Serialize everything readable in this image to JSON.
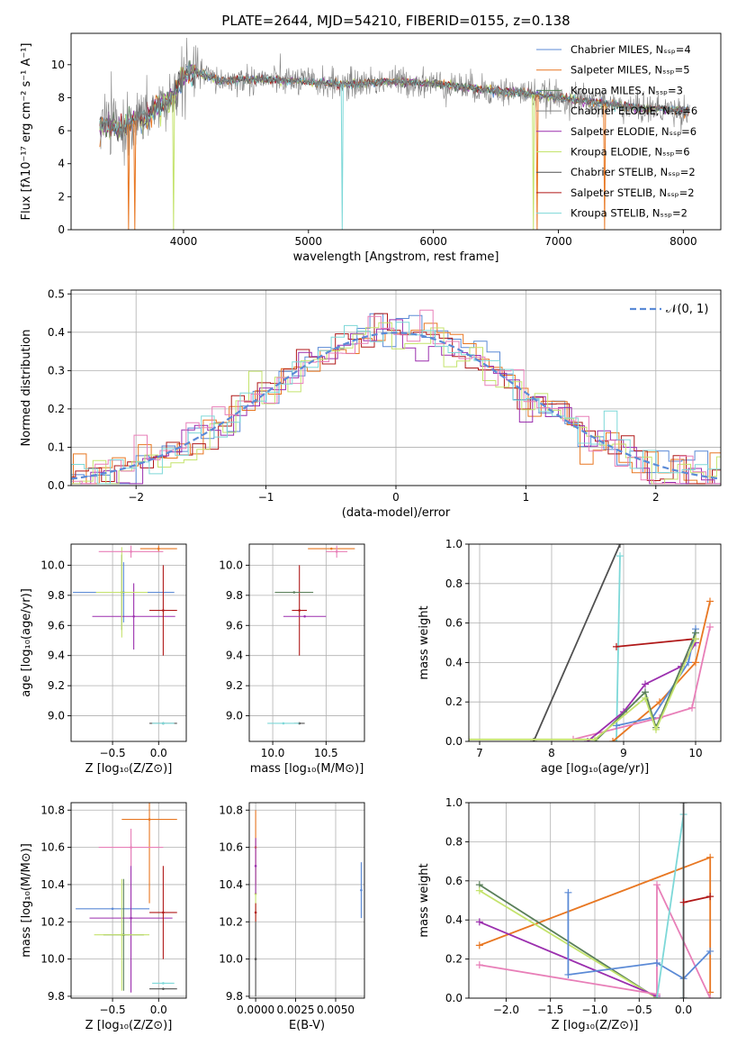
{
  "title": "PLATE=2644, MJD=54210, FIBERID=0155, z=0.138",
  "colors": {
    "Chabrier MILES": "#5b8ad6",
    "Salpeter MILES": "#e87722",
    "Kroupa MILES": "#5a7f5a",
    "Chabrier ELODIE": "#808080",
    "Salpeter ELODIE": "#9b2fae",
    "Kroupa ELODIE": "#c4e36c",
    "Chabrier STELIB": "#505050",
    "Salpeter STELIB": "#b01818",
    "Kroupa STELIB": "#7dd8d8",
    "pink": "#e87fb8",
    "normal_curve": "#5b8ad6"
  },
  "chart_data": [
    {
      "id": "spectrum",
      "type": "line",
      "xlabel": "wavelength [Angstrom, rest frame]",
      "ylabel": "Flux [fλ10⁻¹⁷ erg cm⁻² s⁻¹ A⁻¹]",
      "xlim": [
        3100,
        8300
      ],
      "ylim": [
        0,
        11.9
      ],
      "xticks": [
        4000,
        5000,
        6000,
        7000,
        8000
      ],
      "yticks": [
        0,
        2,
        4,
        6,
        8,
        10
      ],
      "grid": false,
      "legend_position": "right",
      "legend": [
        {
          "label": "Chabrier MILES, Nₛₛₚ=4",
          "color_key": "Chabrier MILES"
        },
        {
          "label": "Salpeter MILES, Nₛₛₚ=5",
          "color_key": "Salpeter MILES"
        },
        {
          "label": "Kroupa MILES, Nₛₛₚ=3",
          "color_key": "Kroupa MILES"
        },
        {
          "label": "Chabrier ELODIE, Nₛₛₚ=6",
          "color_key": "Chabrier ELODIE"
        },
        {
          "label": "Salpeter ELODIE, Nₛₛₚ=6",
          "color_key": "Salpeter ELODIE"
        },
        {
          "label": "Kroupa ELODIE, Nₛₛₚ=6",
          "color_key": "Kroupa ELODIE"
        },
        {
          "label": "Chabrier STELIB, Nₛₛₚ=2",
          "color_key": "Chabrier STELIB"
        },
        {
          "label": "Salpeter STELIB, Nₛₛₚ=2",
          "color_key": "Salpeter STELIB"
        },
        {
          "label": "Kroupa STELIB, Nₛₛₚ=2",
          "color_key": "Kroupa STELIB"
        }
      ],
      "continuum": [
        [
          3330,
          6.2
        ],
        [
          3400,
          6.5
        ],
        [
          3500,
          6.0
        ],
        [
          3600,
          6.6
        ],
        [
          3700,
          6.8
        ],
        [
          3800,
          7.5
        ],
        [
          3900,
          7.9
        ],
        [
          3950,
          8.5
        ],
        [
          4000,
          9.3
        ],
        [
          4100,
          9.6
        ],
        [
          4200,
          9.3
        ],
        [
          4300,
          9.0
        ],
        [
          4500,
          9.1
        ],
        [
          4700,
          9.1
        ],
        [
          4900,
          9.0
        ],
        [
          5100,
          8.9
        ],
        [
          5300,
          8.8
        ],
        [
          5500,
          8.9
        ],
        [
          5700,
          9.0
        ],
        [
          5900,
          8.9
        ],
        [
          6100,
          8.8
        ],
        [
          6300,
          8.6
        ],
        [
          6500,
          8.4
        ],
        [
          6700,
          8.3
        ],
        [
          6900,
          8.1
        ],
        [
          7100,
          7.9
        ],
        [
          7300,
          7.7
        ],
        [
          7500,
          7.5
        ],
        [
          7700,
          7.3
        ],
        [
          7900,
          7.3
        ],
        [
          8050,
          7.2
        ]
      ],
      "absorption_dips": [
        {
          "x": 3560,
          "min": 0,
          "color_key": "Salpeter MILES"
        },
        {
          "x": 3610,
          "min": 0,
          "color_key": "Salpeter MILES"
        },
        {
          "x": 3920,
          "min": 0,
          "color_key": "Kroupa ELODIE"
        },
        {
          "x": 5270,
          "min": 0,
          "color_key": "Kroupa STELIB"
        },
        {
          "x": 6800,
          "min": 0,
          "color_key": "Kroupa ELODIE"
        },
        {
          "x": 6830,
          "min": 0,
          "color_key": "Salpeter MILES"
        },
        {
          "x": 7370,
          "min": 0,
          "color_key": "Salpeter MILES"
        }
      ]
    },
    {
      "id": "residuals",
      "type": "line",
      "xlabel": "(data-model)/error",
      "ylabel": "Normed distribution",
      "xlim": [
        -2.5,
        2.5
      ],
      "ylim": [
        0,
        0.51
      ],
      "xticks": [
        -2,
        -1,
        0,
        1,
        2
      ],
      "yticks": [
        0.0,
        0.1,
        0.2,
        0.3,
        0.4,
        0.5
      ],
      "grid": true,
      "legend_position": "top-right",
      "legend": [
        {
          "label": "𝒩(0, 1)",
          "color_key": "normal_curve"
        }
      ],
      "bin_width": 0.1,
      "hist_color_keys": [
        "Chabrier MILES",
        "Salpeter MILES",
        "Salpeter STELIB",
        "Salpeter ELODIE",
        "Kroupa ELODIE",
        "pink",
        "Kroupa STELIB"
      ]
    },
    {
      "id": "age-vs-Z",
      "type": "scatter",
      "xlabel": "Z [log₁₀(Z/Z⊙)]",
      "ylabel": "age  [log₁₀(age/yr)]",
      "xlim": [
        -0.95,
        0.3
      ],
      "ylim": [
        8.83,
        10.14
      ],
      "xticks": [
        -0.5,
        0.0
      ],
      "yticks": [
        9.0,
        9.2,
        9.4,
        9.6,
        9.8,
        10.0
      ],
      "grid": true,
      "points": [
        {
          "x": -0.38,
          "y": 9.82,
          "xerr": 0.55,
          "yerr": 0.2,
          "color_key": "Chabrier MILES"
        },
        {
          "x": 0.0,
          "y": 10.11,
          "xerr": 0.2,
          "yerr": 0.02,
          "color_key": "Salpeter MILES"
        },
        {
          "x": -0.4,
          "y": 9.82,
          "xerr": 0.25,
          "yerr": 0.25,
          "color_key": "Kroupa MILES"
        },
        {
          "x": -0.27,
          "y": 9.66,
          "xerr": 0.45,
          "yerr": 0.22,
          "color_key": "Salpeter ELODIE"
        },
        {
          "x": -0.4,
          "y": 9.82,
          "xerr": 0.28,
          "yerr": 0.3,
          "color_key": "Kroupa ELODIE"
        },
        {
          "x": 0.05,
          "y": 8.95,
          "xerr": 0.15,
          "yerr": 0.0,
          "color_key": "Chabrier STELIB"
        },
        {
          "x": 0.05,
          "y": 9.7,
          "xerr": 0.15,
          "yerr": 0.3,
          "color_key": "Salpeter STELIB"
        },
        {
          "x": 0.05,
          "y": 8.95,
          "xerr": 0.12,
          "yerr": 0.0,
          "color_key": "Kroupa STELIB"
        },
        {
          "x": -0.3,
          "y": 10.09,
          "xerr": 0.35,
          "yerr": 0.04,
          "color_key": "pink"
        }
      ]
    },
    {
      "id": "age-vs-mass",
      "type": "scatter",
      "xlabel": "mass [log₁₀(M/M⊙)]",
      "ylabel": "",
      "xlim": [
        9.78,
        10.86
      ],
      "ylim": [
        8.83,
        10.14
      ],
      "xticks": [
        10.0,
        10.5
      ],
      "yticks": [
        9.0,
        9.2,
        9.4,
        9.6,
        9.8,
        10.0
      ],
      "grid": true,
      "points": [
        {
          "x": 10.25,
          "y": 9.7,
          "xerr": 0.07,
          "yerr": 0.3,
          "color_key": "Salpeter STELIB"
        },
        {
          "x": 10.2,
          "y": 9.82,
          "xerr": 0.18,
          "yerr": 0.0,
          "color_key": "Kroupa MILES"
        },
        {
          "x": 10.3,
          "y": 9.66,
          "xerr": 0.2,
          "yerr": 0.0,
          "color_key": "Salpeter ELODIE"
        },
        {
          "x": 10.55,
          "y": 10.11,
          "xerr": 0.22,
          "yerr": 0.0,
          "color_key": "Salpeter MILES"
        },
        {
          "x": 10.6,
          "y": 10.09,
          "xerr": 0.1,
          "yerr": 0.04,
          "color_key": "pink"
        },
        {
          "x": 10.25,
          "y": 8.95,
          "xerr": 0.05,
          "yerr": 0.0,
          "color_key": "Chabrier STELIB"
        },
        {
          "x": 10.1,
          "y": 8.95,
          "xerr": 0.15,
          "yerr": 0.0,
          "color_key": "Kroupa STELIB"
        }
      ]
    },
    {
      "id": "massweight-vs-age",
      "type": "line",
      "xlabel": "age  [log₁₀(age/yr)]",
      "ylabel": "mass weight",
      "xlim": [
        6.85,
        10.35
      ],
      "ylim": [
        0,
        1.0
      ],
      "xticks": [
        7,
        8,
        9,
        10
      ],
      "yticks": [
        0.0,
        0.2,
        0.4,
        0.6,
        0.8,
        1.0
      ],
      "grid": true,
      "series": [
        {
          "color_key": "Chabrier STELIB",
          "x": [
            7.75,
            8.95
          ],
          "y": [
            0.0,
            1.0
          ]
        },
        {
          "color_key": "Kroupa STELIB",
          "x": [
            8.9,
            8.95
          ],
          "y": [
            0.0,
            0.94
          ]
        },
        {
          "color_key": "Salpeter STELIB",
          "x": [
            8.9,
            10.0
          ],
          "y": [
            0.48,
            0.52
          ]
        },
        {
          "color_key": "Salpeter MILES",
          "x": [
            8.85,
            9.5,
            10.0,
            10.2
          ],
          "y": [
            0.0,
            0.2,
            0.4,
            0.71
          ]
        },
        {
          "color_key": "pink",
          "x": [
            8.3,
            9.5,
            9.95,
            10.2
          ],
          "y": [
            0.01,
            0.12,
            0.17,
            0.58
          ]
        },
        {
          "color_key": "Salpeter ELODIE",
          "x": [
            8.5,
            9.0,
            9.3,
            9.8,
            10.0
          ],
          "y": [
            0.0,
            0.15,
            0.29,
            0.38,
            0.5
          ]
        },
        {
          "color_key": "Chabrier MILES",
          "x": [
            8.9,
            9.4,
            9.9,
            10.0
          ],
          "y": [
            0.08,
            0.12,
            0.4,
            0.57
          ]
        },
        {
          "color_key": "Kroupa MILES",
          "x": [
            8.6,
            9.3,
            9.45,
            10.0
          ],
          "y": [
            0.0,
            0.25,
            0.07,
            0.55
          ]
        },
        {
          "color_key": "Kroupa ELODIE",
          "x": [
            6.85,
            8.6,
            9.3,
            9.45,
            10.0
          ],
          "y": [
            0.01,
            0.01,
            0.22,
            0.06,
            0.52
          ]
        }
      ]
    },
    {
      "id": "mass-vs-Z",
      "type": "scatter",
      "xlabel": "Z [log₁₀(Z/Z⊙)]",
      "ylabel": "mass [log₁₀(M/M⊙)]",
      "xlim": [
        -0.95,
        0.3
      ],
      "ylim": [
        9.79,
        10.84
      ],
      "xticks": [
        -0.5,
        0.0
      ],
      "yticks": [
        9.8,
        10.0,
        10.2,
        10.4,
        10.6,
        10.8
      ],
      "grid": true,
      "points": [
        {
          "x": -0.5,
          "y": 10.27,
          "xerr": 0.4,
          "yerr": 0.0,
          "color_key": "Chabrier MILES"
        },
        {
          "x": -0.1,
          "y": 10.75,
          "xerr": 0.3,
          "yerr": 0.45,
          "color_key": "Salpeter MILES"
        },
        {
          "x": -0.38,
          "y": 10.13,
          "xerr": 0.22,
          "yerr": 0.3,
          "color_key": "Kroupa MILES"
        },
        {
          "x": -0.3,
          "y": 10.22,
          "xerr": 0.45,
          "yerr": 0.4,
          "color_key": "Salpeter ELODIE"
        },
        {
          "x": -0.4,
          "y": 10.13,
          "xerr": 0.3,
          "yerr": 0.3,
          "color_key": "Kroupa ELODIE"
        },
        {
          "x": 0.05,
          "y": 9.84,
          "xerr": 0.15,
          "yerr": 0.0,
          "color_key": "Chabrier STELIB"
        },
        {
          "x": 0.05,
          "y": 10.25,
          "xerr": 0.15,
          "yerr": 0.25,
          "color_key": "Salpeter STELIB"
        },
        {
          "x": 0.05,
          "y": 9.87,
          "xerr": 0.12,
          "yerr": 0.0,
          "color_key": "Kroupa STELIB"
        },
        {
          "x": -0.3,
          "y": 10.6,
          "xerr": 0.35,
          "yerr": 0.1,
          "color_key": "pink"
        }
      ]
    },
    {
      "id": "mass-vs-EBV",
      "type": "scatter",
      "xlabel": "E(B-V)",
      "ylabel": "",
      "xlim": [
        -0.0004,
        0.0068
      ],
      "ylim": [
        9.79,
        10.84
      ],
      "xticks": [
        0.0,
        0.0025,
        0.005
      ],
      "xtick_labels": [
        "0.0000",
        "0.0025",
        "0.0050"
      ],
      "yticks": [
        9.8,
        10.0,
        10.2,
        10.4,
        10.6,
        10.8
      ],
      "grid": true,
      "points": [
        {
          "x": 0.0066,
          "y": 10.37,
          "xerr": 0.0,
          "yerr": 0.15,
          "color_key": "Chabrier MILES"
        },
        {
          "x": 0.0,
          "y": 10.6,
          "xerr": 0.0,
          "yerr": 0.2,
          "color_key": "Salpeter MILES"
        },
        {
          "x": 0.0,
          "y": 10.35,
          "xerr": 0.0,
          "yerr": 0.15,
          "color_key": "Kroupa ELODIE"
        },
        {
          "x": 0.0,
          "y": 10.25,
          "xerr": 0.0,
          "yerr": 0.05,
          "color_key": "Salpeter STELIB"
        },
        {
          "x": 0.0,
          "y": 10.0,
          "xerr": 0.0,
          "yerr": 0.2,
          "color_key": "Chabrier STELIB"
        },
        {
          "x": 0.0,
          "y": 10.5,
          "xerr": 0.0,
          "yerr": 0.15,
          "color_key": "Salpeter ELODIE"
        }
      ]
    },
    {
      "id": "massweight-vs-Z",
      "type": "line",
      "xlabel": "Z [log₁₀(Z/Z⊙)]",
      "ylabel": "mass weight",
      "xlim": [
        -2.42,
        0.42
      ],
      "ylim": [
        0,
        1.0
      ],
      "xticks": [
        -2.0,
        -1.5,
        -1.0,
        -0.5,
        0.0
      ],
      "yticks": [
        0.0,
        0.2,
        0.4,
        0.6,
        0.8,
        1.0
      ],
      "grid": true,
      "series": [
        {
          "color_key": "Salpeter MILES",
          "x": [
            -2.3,
            0.3,
            0.3
          ],
          "y": [
            0.27,
            0.72,
            0.03
          ]
        },
        {
          "color_key": "Kroupa MILES",
          "x": [
            -2.3,
            -0.3
          ],
          "y": [
            0.58,
            0.0
          ]
        },
        {
          "color_key": "Kroupa ELODIE",
          "x": [
            -2.3,
            -0.3
          ],
          "y": [
            0.55,
            0.0
          ]
        },
        {
          "color_key": "Salpeter ELODIE",
          "x": [
            -2.3,
            -0.3
          ],
          "y": [
            0.39,
            0.01
          ]
        },
        {
          "color_key": "pink",
          "x": [
            -2.3,
            -0.3,
            -0.3,
            0.3
          ],
          "y": [
            0.17,
            0.02,
            0.58,
            0.0
          ]
        },
        {
          "color_key": "Chabrier MILES",
          "x": [
            -1.3,
            -1.3,
            -0.3,
            0.0,
            0.3
          ],
          "y": [
            0.54,
            0.12,
            0.18,
            0.1,
            0.24
          ]
        },
        {
          "color_key": "Kroupa STELIB",
          "x": [
            -0.3,
            0.0,
            0.0
          ],
          "y": [
            0.0,
            0.94,
            0.0
          ]
        },
        {
          "color_key": "Chabrier STELIB",
          "x": [
            0.0,
            0.0
          ],
          "y": [
            0.0,
            1.0
          ]
        },
        {
          "color_key": "Salpeter STELIB",
          "x": [
            0.0,
            0.3
          ],
          "y": [
            0.49,
            0.52
          ]
        }
      ]
    }
  ]
}
